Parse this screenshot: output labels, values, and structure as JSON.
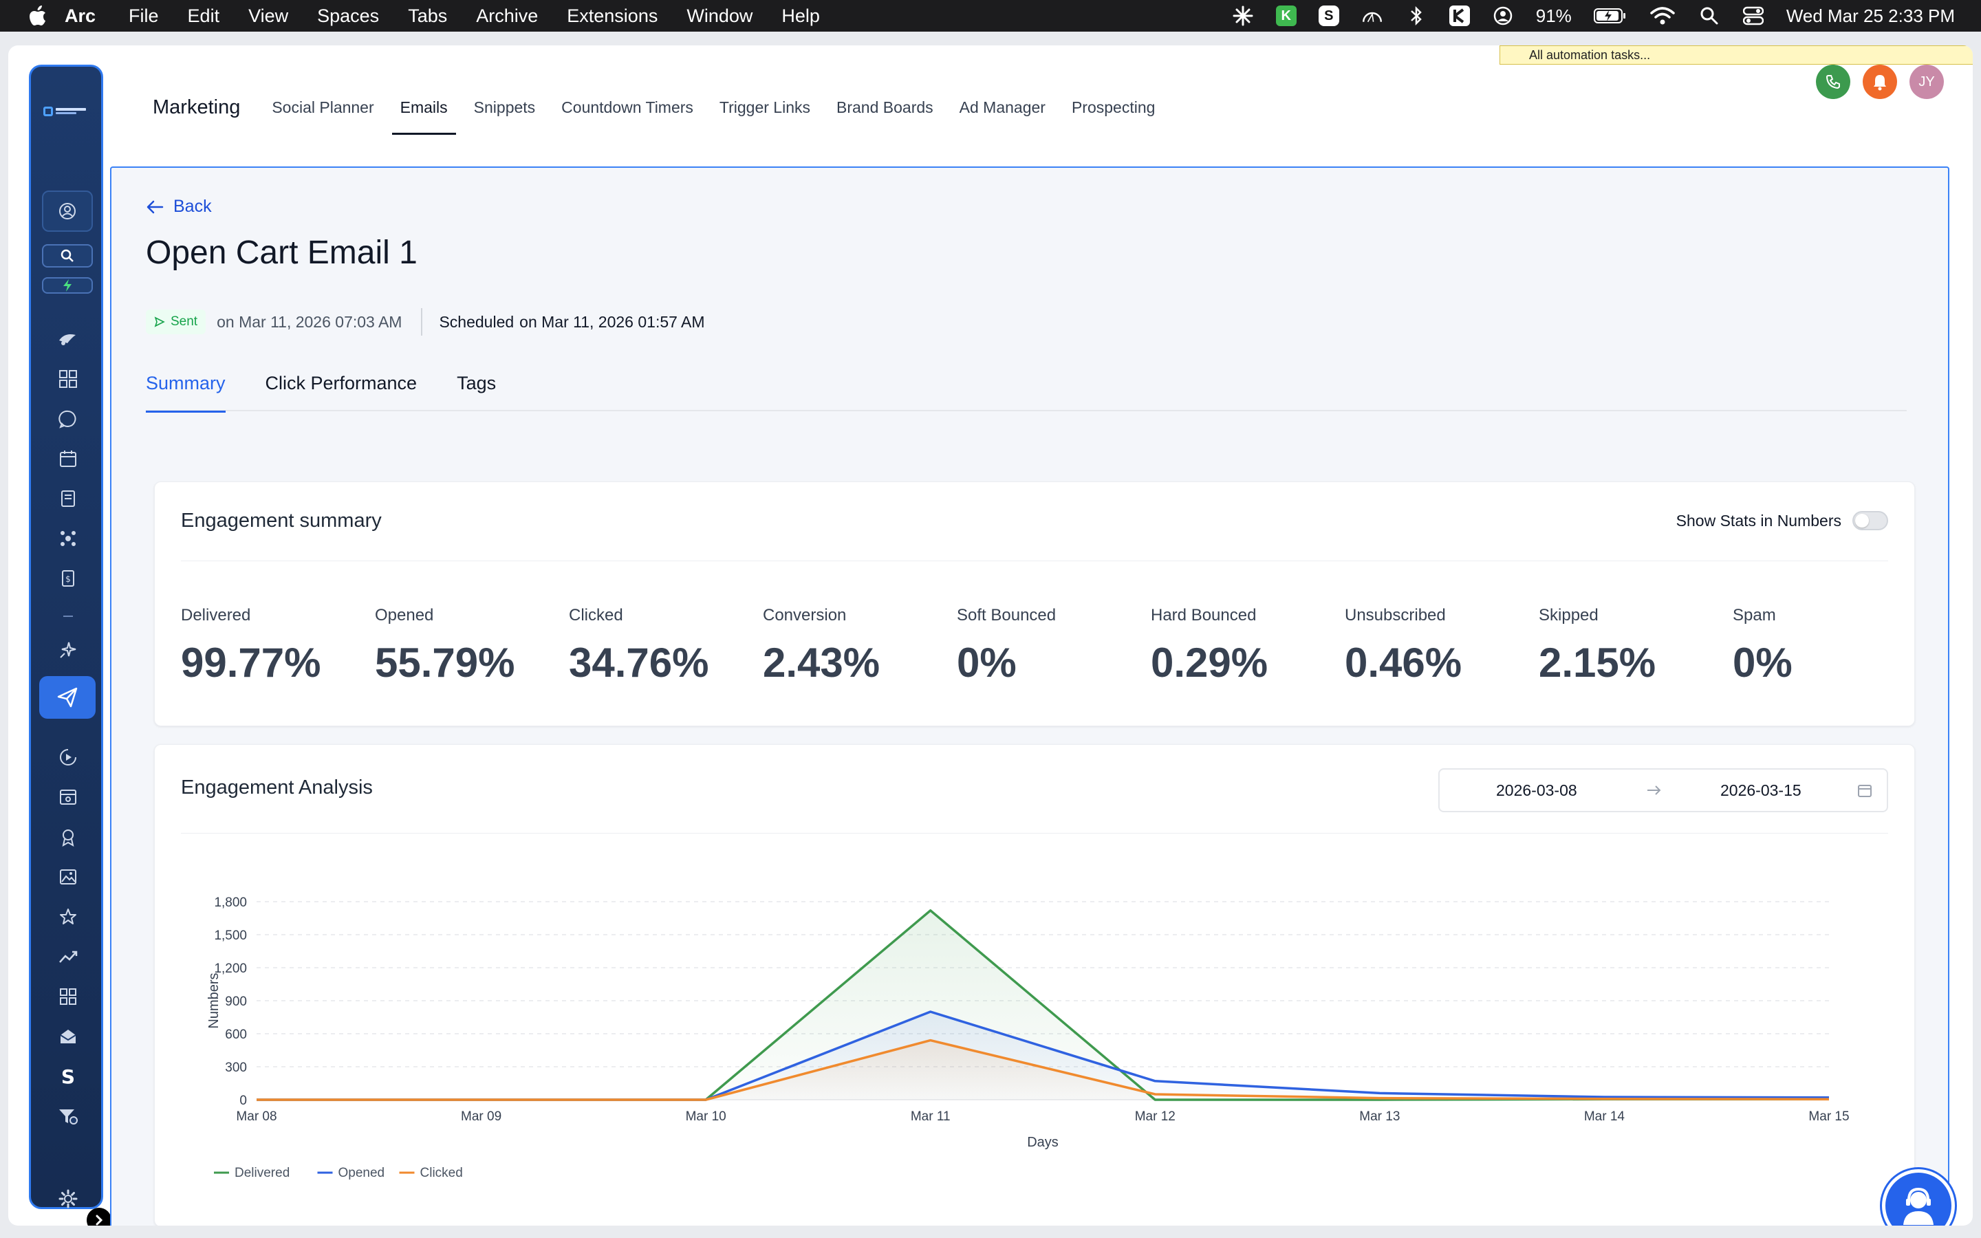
{
  "menubar": {
    "app": "Arc",
    "items": [
      "File",
      "Edit",
      "View",
      "Spaces",
      "Tabs",
      "Archive",
      "Extensions",
      "Window",
      "Help"
    ],
    "battery": "91%",
    "clock": "Wed Mar 25  2:33 PM",
    "tray_k": "K",
    "tray_s": "S"
  },
  "automation_banner": "All automation tasks...",
  "avatar_initials": "JY",
  "topnav": {
    "brand": "Marketing",
    "items": [
      "Social Planner",
      "Emails",
      "Snippets",
      "Countdown Timers",
      "Trigger Links",
      "Brand Boards",
      "Ad Manager",
      "Prospecting"
    ],
    "active": "Emails"
  },
  "page": {
    "back_label": "Back",
    "title": "Open Cart Email 1",
    "status": "Sent",
    "sent_on": "on Mar 11, 2026 07:03 AM",
    "scheduled_label": "Scheduled",
    "scheduled_on": "on Mar 11, 2026 01:57 AM",
    "tabs": [
      "Summary",
      "Click Performance",
      "Tags"
    ],
    "active_tab": "Summary"
  },
  "summary": {
    "title": "Engagement summary",
    "toggle_label": "Show Stats in Numbers",
    "toggle_on": false,
    "stats": [
      {
        "label": "Delivered",
        "value": "99.77%"
      },
      {
        "label": "Opened",
        "value": "55.79%"
      },
      {
        "label": "Clicked",
        "value": "34.76%"
      },
      {
        "label": "Conversion",
        "value": "2.43%"
      },
      {
        "label": "Soft Bounced",
        "value": "0%"
      },
      {
        "label": "Hard Bounced",
        "value": "0.29%"
      },
      {
        "label": "Unsubscribed",
        "value": "0.46%"
      },
      {
        "label": "Skipped",
        "value": "2.15%"
      },
      {
        "label": "Spam",
        "value": "0%"
      }
    ]
  },
  "analysis": {
    "title": "Engagement Analysis",
    "date_from": "2026-03-08",
    "date_to": "2026-03-15"
  },
  "chart_data": {
    "type": "line",
    "title": "",
    "xlabel": "Days",
    "ylabel": "Numbers",
    "categories": [
      "Mar 08",
      "Mar 09",
      "Mar 10",
      "Mar 11",
      "Mar 12",
      "Mar 13",
      "Mar 14",
      "Mar 15"
    ],
    "yticks": [
      0,
      300,
      600,
      900,
      1200,
      1500,
      1800
    ],
    "ytick_labels": [
      "0",
      "300",
      "600",
      "900",
      "1,200",
      "1,500",
      "1,800"
    ],
    "ylim": [
      0,
      1800
    ],
    "grid": true,
    "legend_position": "bottom-left",
    "series": [
      {
        "name": "Delivered",
        "color": "#3f9a4e",
        "values": [
          0,
          0,
          0,
          1720,
          0,
          0,
          5,
          5
        ]
      },
      {
        "name": "Opened",
        "color": "#2f62e0",
        "values": [
          0,
          0,
          0,
          800,
          170,
          60,
          25,
          20
        ]
      },
      {
        "name": "Clicked",
        "color": "#f08a2e",
        "values": [
          0,
          0,
          0,
          540,
          50,
          15,
          8,
          5
        ]
      }
    ]
  }
}
